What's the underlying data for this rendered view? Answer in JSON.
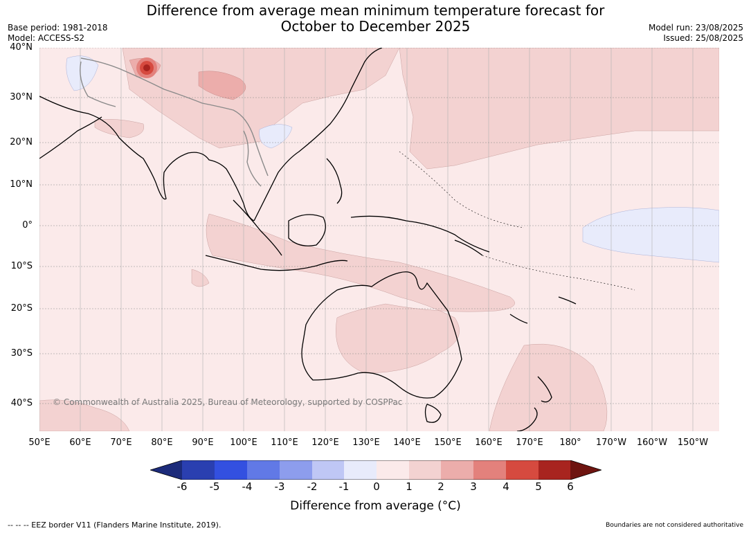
{
  "title_line1": "Difference from average mean minimum temperature forecast for",
  "title_line2": "October to December 2025",
  "base_period": "Base period: 1981-2018",
  "model": "Model: ACCESS-S2",
  "model_run": "Model run: 23/08/2025",
  "issued": "Issued: 25/08/2025",
  "copyright": "© Commonwealth of Australia 2025, Bureau of Meteorology, supported by COSPPac",
  "lat_labels": [
    "40°N",
    "30°N",
    "20°N",
    "10°N",
    "0°",
    "10°S",
    "20°S",
    "30°S",
    "40°S"
  ],
  "lon_labels": [
    "50°E",
    "60°E",
    "70°E",
    "80°E",
    "90°E",
    "100°E",
    "110°E",
    "120°E",
    "130°E",
    "140°E",
    "150°E",
    "160°E",
    "170°E",
    "180°",
    "170°W",
    "160°W",
    "150°W"
  ],
  "colorbar": {
    "ticks": [
      "-6",
      "-5",
      "-4",
      "-3",
      "-2",
      "-1",
      "0",
      "1",
      "2",
      "3",
      "4",
      "5",
      "6"
    ],
    "colors": [
      "#1c2b7a",
      "#2a3fb0",
      "#3350e0",
      "#6179e6",
      "#8d9ded",
      "#bfc7f5",
      "#e8ebfb",
      "#fbeaea",
      "#f3d2d1",
      "#ecadab",
      "#e3817c",
      "#d64a3f",
      "#a8241f",
      "#6e1410"
    ],
    "label": "Difference from average (°C)"
  },
  "eez_note": "-- -- -- EEZ border V11 (Flanders Marine Institute, 2019).",
  "boundary_note": "Boundaries are not considered authoritative"
}
